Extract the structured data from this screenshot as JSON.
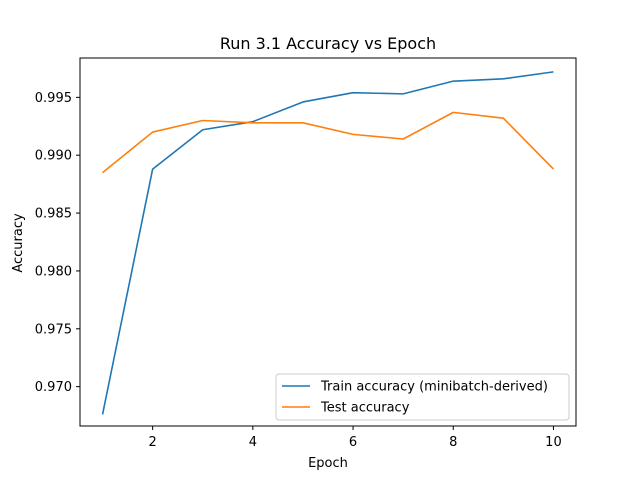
{
  "chart_data": {
    "type": "line",
    "title": "Run 3.1 Accuracy vs Epoch",
    "xlabel": "Epoch",
    "ylabel": "Accuracy",
    "x": [
      1,
      2,
      3,
      4,
      5,
      6,
      7,
      8,
      9,
      10
    ],
    "xlim": [
      0.55,
      10.45
    ],
    "ylim": [
      0.9666,
      0.9984
    ],
    "xticks": [
      2,
      4,
      6,
      8,
      10
    ],
    "yticks": [
      0.97,
      0.975,
      0.98,
      0.985,
      0.99,
      0.995
    ],
    "ytick_labels": [
      "0.970",
      "0.975",
      "0.980",
      "0.985",
      "0.990",
      "0.995"
    ],
    "grid": false,
    "legend_position": "lower-right",
    "series": [
      {
        "name": "Train accuracy (minibatch-derived)",
        "color": "#1f77b4",
        "values": [
          0.9676,
          0.9888,
          0.9922,
          0.9929,
          0.9946,
          0.9954,
          0.9953,
          0.9964,
          0.9966,
          0.9972
        ]
      },
      {
        "name": "Test accuracy",
        "color": "#ff7f0e",
        "values": [
          0.9885,
          0.992,
          0.993,
          0.9928,
          0.9928,
          0.9918,
          0.9914,
          0.9937,
          0.9932,
          0.9888
        ]
      }
    ]
  }
}
